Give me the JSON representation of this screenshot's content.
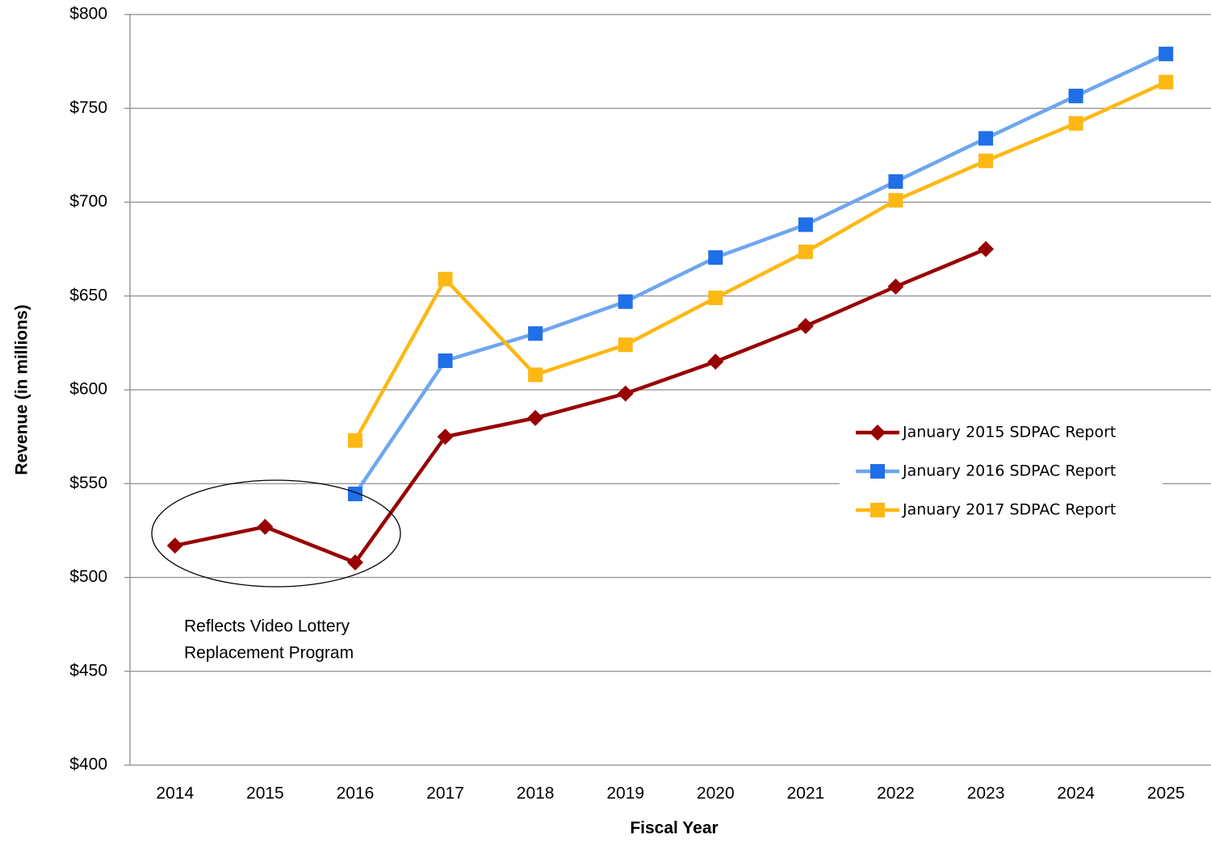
{
  "chart_data": {
    "type": "line",
    "xlabel": "Fiscal Year",
    "ylabel": "Revenue (in millions)",
    "categories": [
      "2014",
      "2015",
      "2016",
      "2017",
      "2018",
      "2019",
      "2020",
      "2021",
      "2022",
      "2023",
      "2024",
      "2025"
    ],
    "series": [
      {
        "name": "January 2015 SDPAC Report",
        "color": "#990000",
        "marker": "diamond",
        "values": [
          517,
          527,
          508,
          575,
          585,
          598,
          615,
          634,
          655,
          675,
          null,
          null
        ]
      },
      {
        "name": "January 2016 SDPAC Report",
        "color": "#6ea6ef",
        "marker": "square",
        "marker_color": "#1f6fe8",
        "values": [
          null,
          null,
          544.5,
          615.5,
          630,
          647,
          670.5,
          688,
          711,
          734,
          756.6,
          779
        ]
      },
      {
        "name": "January 2017 SDPAC Report",
        "color": "#fdb813",
        "marker": "square",
        "values": [
          null,
          null,
          573,
          659,
          608,
          624,
          649,
          673.5,
          701,
          722,
          742,
          764
        ]
      }
    ],
    "ylim": [
      400,
      800
    ],
    "yticks": [
      {
        "value": 400,
        "label": "$400"
      },
      {
        "value": 450,
        "label": "$450"
      },
      {
        "value": 500,
        "label": "$500"
      },
      {
        "value": 550,
        "label": "$550"
      },
      {
        "value": 600,
        "label": "$600"
      },
      {
        "value": 650,
        "label": "$650"
      },
      {
        "value": 700,
        "label": "$700"
      },
      {
        "value": 750,
        "label": "$750"
      },
      {
        "value": 800,
        "label": "$800"
      }
    ],
    "grid": true,
    "legend": "right",
    "annotation": [
      "Reflects Video Lottery",
      "Replacement Program"
    ]
  }
}
